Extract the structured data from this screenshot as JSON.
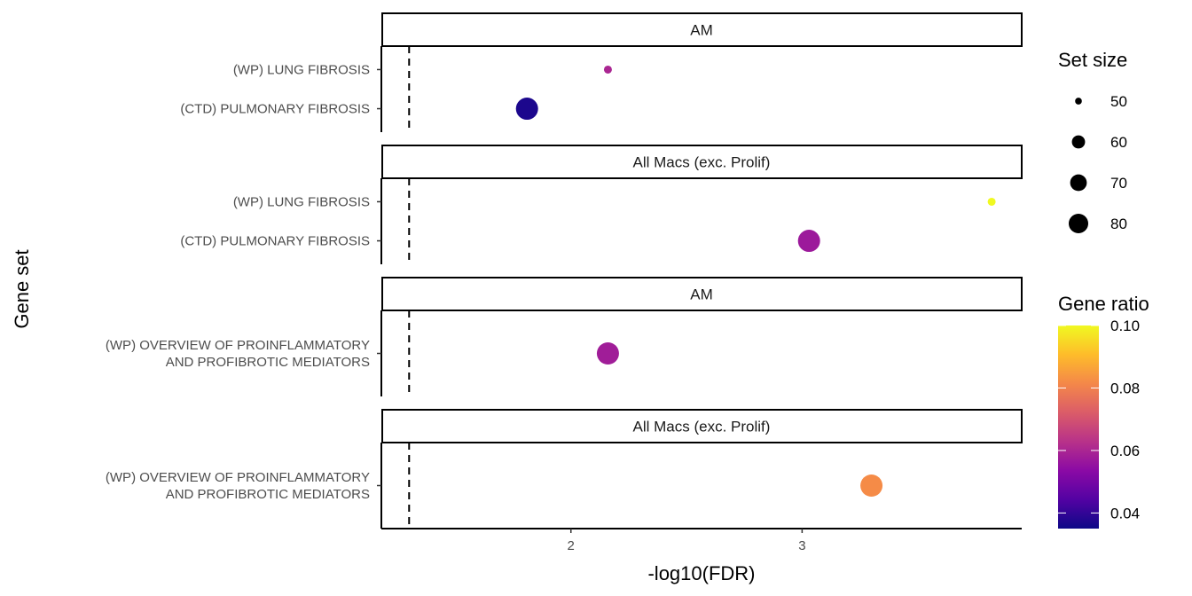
{
  "chart_data": {
    "type": "scatter",
    "xlabel": "-log10(FDR)",
    "ylabel": "Gene set",
    "xlim": [
      1.18,
      3.95
    ],
    "xticks": [
      2,
      3
    ],
    "threshold_x": 1.3,
    "panels": [
      {
        "strip": "AM",
        "categories": [
          "(WP) LUNG FIBROSIS",
          "(CTD) PULMONARY FIBROSIS"
        ],
        "points": [
          {
            "category": "(WP) LUNG FIBROSIS",
            "x": 2.16,
            "size": 48,
            "ratio": 0.06
          },
          {
            "category": "(CTD) PULMONARY FIBROSIS",
            "x": 1.81,
            "size": 80,
            "ratio": 0.037
          }
        ]
      },
      {
        "strip": "All Macs (exc. Prolif)",
        "categories": [
          "(WP) LUNG FIBROSIS",
          "(CTD) PULMONARY FIBROSIS"
        ],
        "points": [
          {
            "category": "(WP) LUNG FIBROSIS",
            "x": 3.82,
            "size": 48,
            "ratio": 0.1
          },
          {
            "category": "(CTD) PULMONARY FIBROSIS",
            "x": 3.03,
            "size": 80,
            "ratio": 0.057
          }
        ]
      },
      {
        "strip": "AM",
        "categories": [
          "(WP) OVERVIEW OF PROINFLAMMATORY\nAND PROFIBROTIC MEDIATORS"
        ],
        "points": [
          {
            "category": "(WP) OVERVIEW OF PROINFLAMMATORY\nAND PROFIBROTIC MEDIATORS",
            "x": 2.16,
            "size": 80,
            "ratio": 0.058
          }
        ]
      },
      {
        "strip": "All Macs (exc. Prolif)",
        "categories": [
          "(WP) OVERVIEW OF PROINFLAMMATORY\nAND PROFIBROTIC MEDIATORS"
        ],
        "points": [
          {
            "category": "(WP) OVERVIEW OF PROINFLAMMATORY\nAND PROFIBROTIC MEDIATORS",
            "x": 3.3,
            "size": 80,
            "ratio": 0.082
          }
        ]
      }
    ],
    "size_legend": {
      "title": "Set size",
      "values": [
        50,
        60,
        70,
        80
      ]
    },
    "color_legend": {
      "title": "Gene ratio",
      "range": [
        0.035,
        0.1
      ],
      "ticks": [
        0.04,
        0.06,
        0.08,
        0.1
      ],
      "tick_labels": [
        "0.04",
        "0.06",
        "0.08",
        "0.10"
      ],
      "palette": [
        "#0d0887",
        "#5302a3",
        "#8b0aa5",
        "#b83289",
        "#db5c68",
        "#f48849",
        "#febc2a",
        "#f0f921"
      ]
    }
  }
}
